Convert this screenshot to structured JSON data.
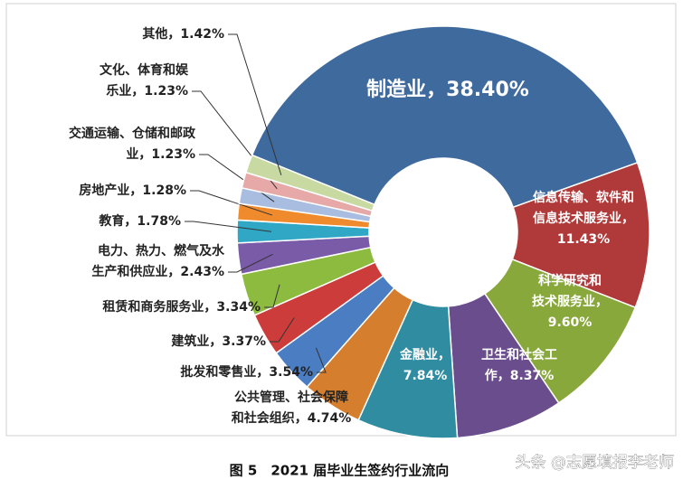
{
  "chart_data": {
    "type": "donut",
    "caption": "图 5　2021 届毕业生签约行业流向",
    "watermark": "头条 @志愿填报李老师",
    "categories": [
      "制造业",
      "信息传输、软件和信息技术服务业",
      "科学研究和技术服务业",
      "卫生和社会工作",
      "金融业",
      "公共管理、社会保障和社会组织",
      "批发和零售业",
      "建筑业",
      "租赁和商务服务业",
      "电力、热力、燃气及水生产和供应业",
      "教育",
      "房地产业",
      "交通运输、仓储和邮政业",
      "文化、体育和娱乐业",
      "其他"
    ],
    "values": [
      38.4,
      11.43,
      9.6,
      8.37,
      7.84,
      4.74,
      3.54,
      3.37,
      3.34,
      2.43,
      1.78,
      1.28,
      1.23,
      1.23,
      1.42
    ],
    "labels": [
      [
        "制造业，38.40%"
      ],
      [
        "信息传输、软件和",
        "信息技术服务业，",
        "11.43%"
      ],
      [
        "科学研究和",
        "技术服务业，",
        "9.60%"
      ],
      [
        "卫生和社会工",
        "作，8.37%"
      ],
      [
        "金融业，",
        "7.84%"
      ],
      [
        "公共管理、社会保障",
        "和社会组织，4.74%"
      ],
      [
        "批发和零售业，3.54%"
      ],
      [
        "建筑业，3.37%"
      ],
      [
        "租赁和商务服务业，3.34%"
      ],
      [
        "电力、热力、燃气及水",
        "生产和供应业，2.43%"
      ],
      [
        "教育，1.78%"
      ],
      [
        "房地产业，1.28%"
      ],
      [
        "交通运输、仓储和邮政",
        "业，1.23%"
      ],
      [
        "文化、体育和娱",
        "乐业，1.23%"
      ],
      [
        "其他，1.42%"
      ]
    ],
    "colors": [
      "#3f6a9e",
      "#b0393a",
      "#89a83c",
      "#6a4d8c",
      "#2f8ca1",
      "#d47e2e",
      "#4a7dc1",
      "#cc3c3a",
      "#8dbb3f",
      "#7a5ba7",
      "#30a8c5",
      "#f08b2d",
      "#a9bde1",
      "#e6a9a8",
      "#c8daa2"
    ]
  }
}
